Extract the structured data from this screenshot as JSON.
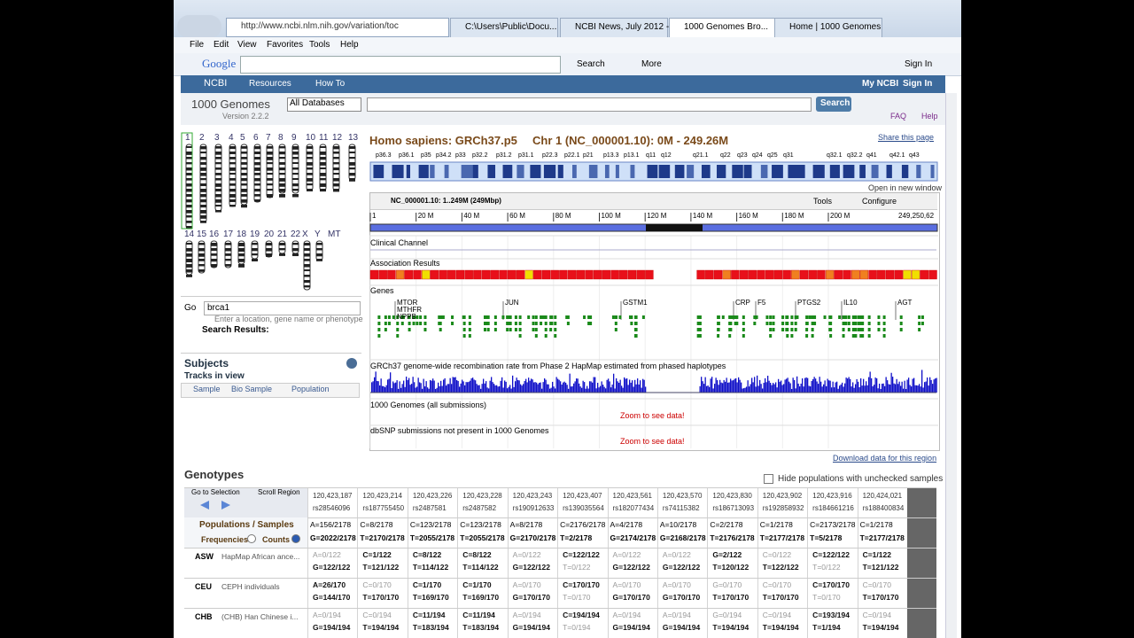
{
  "browser": {
    "url": "http://www.ncbi.nlm.nih.gov/variation/toc",
    "tabs": [
      "C:\\Users\\Public\\Docu...",
      "NCBI News, July 2012 -...",
      "1000 Genomes Bro...",
      "Home | 1000 Genomes"
    ],
    "menu": [
      "File",
      "Edit",
      "View",
      "Favorites",
      "Tools",
      "Help"
    ],
    "google": "Google",
    "search": "Search",
    "more": "More",
    "sign_in": "Sign In"
  },
  "ncbi_bar": {
    "logo": "NCBI",
    "items": [
      "Resources",
      "How To"
    ],
    "right": [
      "My NCBI",
      "Sign In"
    ]
  },
  "header": {
    "title": "1000 Genomes",
    "version": "Version 2.2.2",
    "database": "All Databases",
    "button": "Search",
    "links": [
      "FAQ",
      "Help"
    ]
  },
  "chromosomes": {
    "top": [
      "1",
      "2",
      "3",
      "4",
      "5",
      "6",
      "7",
      "8",
      "9",
      "10",
      "11",
      "12",
      "13"
    ],
    "bottom": [
      "14",
      "15",
      "16",
      "17",
      "18",
      "19",
      "20",
      "21",
      "22",
      "X",
      "Y",
      "MT"
    ]
  },
  "go": {
    "label": "Go",
    "input": "brca1",
    "hint": "Enter a location, gene name or phenotype",
    "results": "Search Results:"
  },
  "subjects": {
    "title": "Subjects",
    "subtitle": "Tracks in view",
    "columns": [
      "Sample",
      "Bio Sample",
      "Population"
    ]
  },
  "viewer": {
    "species": "Homo sapiens: GRCh37.p5",
    "chr": "Chr 1 (NC_000001.10): 0M - 249.26M",
    "share": "Share this page",
    "bands": [
      "p36.3",
      "p36.1",
      "p35",
      "p34.2",
      "p33",
      "p32.2",
      "p31.2",
      "p31.1",
      "p22.3",
      "p22.1",
      "p21",
      "p13.3",
      "p13.1",
      "q11",
      "q12",
      "q21.1",
      "q22",
      "q23",
      "q24",
      "q25",
      "q31",
      "q32.1",
      "q32.2",
      "q41",
      "q42.1",
      "q43"
    ],
    "open_new": "Open in new window",
    "location": "NC_000001.10: 1..249M (249Mbp)",
    "tools": "Tools",
    "configure": "Configure",
    "ruler": [
      "1",
      "20 M",
      "40 M",
      "60 M",
      "80 M",
      "100 M",
      "120 M",
      "140 M",
      "160 M",
      "180 M",
      "200 M",
      "249,250,62"
    ],
    "tracks": {
      "clinical": "Clinical Channel",
      "association": "Association Results",
      "genes": "Genes",
      "gene_labels": [
        "MTOR",
        "MTHFR",
        "NPPB",
        "JUN",
        "GSTM1",
        "CRP",
        "F5",
        "PTGS2",
        "IL10",
        "AGT"
      ],
      "recomb": "GRCh37 genome-wide recombination rate from Phase 2 HapMap estimated from phased haplotypes",
      "kg": "1000 Genomes (all submissions)",
      "dbsnp": "dbSNP submissions not present in 1000 Genomes",
      "zoom": "Zoom to see data!"
    },
    "download": "Download data for this region"
  },
  "genotypes": {
    "title": "Genotypes",
    "hide": "Hide populations with unchecked samples",
    "go_sel": "Go to Selection",
    "scroll": "Scroll Region",
    "pop_label": "Populations / Samples",
    "frequencies": "Frequencies",
    "counts": "Counts",
    "positions": [
      "120,423,187",
      "120,423,214",
      "120,423,226",
      "120,423,228",
      "120,423,243",
      "120,423,407",
      "120,423,561",
      "120,423,570",
      "120,423,830",
      "120,423,902",
      "120,423,916",
      "120,424,021"
    ],
    "rsids": [
      "rs28546096",
      "rs187755450",
      "rs2487581",
      "rs2487582",
      "rs190912633",
      "rs139035564",
      "rs182077434",
      "rs74115382",
      "rs186713093",
      "rs192858932",
      "rs184661216",
      "rs188400834"
    ],
    "all": [
      [
        "A=156/2178",
        "G=2022/2178"
      ],
      [
        "C=8/2178",
        "T=2170/2178"
      ],
      [
        "C=123/2178",
        "T=2055/2178"
      ],
      [
        "C=123/2178",
        "T=2055/2178"
      ],
      [
        "A=8/2178",
        "G=2170/2178"
      ],
      [
        "C=2176/2178",
        "T=2/2178"
      ],
      [
        "A=4/2178",
        "G=2174/2178"
      ],
      [
        "A=10/2178",
        "G=2168/2178"
      ],
      [
        "C=2/2178",
        "T=2176/2178"
      ],
      [
        "C=1/2178",
        "T=2177/2178"
      ],
      [
        "C=2173/2178",
        "T=5/2178"
      ],
      [
        "C=1/2178",
        "T=2177/2178"
      ]
    ],
    "populations": [
      {
        "code": "ASW",
        "name": "HapMap African ance...",
        "cells": [
          [
            "A=0/122",
            "G=122/122"
          ],
          [
            "C=1/122",
            "T=121/122"
          ],
          [
            "C=8/122",
            "T=114/122"
          ],
          [
            "C=8/122",
            "T=114/122"
          ],
          [
            "A=0/122",
            "G=122/122"
          ],
          [
            "C=122/122",
            "T=0/122"
          ],
          [
            "A=0/122",
            "G=122/122"
          ],
          [
            "A=0/122",
            "G=122/122"
          ],
          [
            "G=2/122",
            "T=120/122"
          ],
          [
            "C=0/122",
            "T=122/122"
          ],
          [
            "C=122/122",
            "T=0/122"
          ],
          [
            "C=1/122",
            "T=121/122"
          ]
        ]
      },
      {
        "code": "CEU",
        "name": "CEPH individuals",
        "cells": [
          [
            "A=26/170",
            "G=144/170"
          ],
          [
            "C=0/170",
            "T=170/170"
          ],
          [
            "C=1/170",
            "T=169/170"
          ],
          [
            "C=1/170",
            "T=169/170"
          ],
          [
            "A=0/170",
            "G=170/170"
          ],
          [
            "C=170/170",
            "T=0/170"
          ],
          [
            "A=0/170",
            "G=170/170"
          ],
          [
            "A=0/170",
            "G=170/170"
          ],
          [
            "G=0/170",
            "T=170/170"
          ],
          [
            "C=0/170",
            "T=170/170"
          ],
          [
            "C=170/170",
            "T=0/170"
          ],
          [
            "C=0/170",
            "T=170/170"
          ]
        ]
      },
      {
        "code": "CHB",
        "name": "(CHB) Han Chinese i...",
        "cells": [
          [
            "A=0/194",
            "G=194/194"
          ],
          [
            "C=0/194",
            "T=194/194"
          ],
          [
            "C=11/194",
            "T=183/194"
          ],
          [
            "C=11/194",
            "T=183/194"
          ],
          [
            "A=0/194",
            "G=194/194"
          ],
          [
            "C=194/194",
            "T=0/194"
          ],
          [
            "A=0/194",
            "G=194/194"
          ],
          [
            "A=0/194",
            "G=194/194"
          ],
          [
            "G=0/194",
            "T=194/194"
          ],
          [
            "C=0/194",
            "T=194/194"
          ],
          [
            "C=193/194",
            "T=1/194"
          ],
          [
            "C=0/194",
            "T=194/194"
          ]
        ]
      }
    ]
  }
}
